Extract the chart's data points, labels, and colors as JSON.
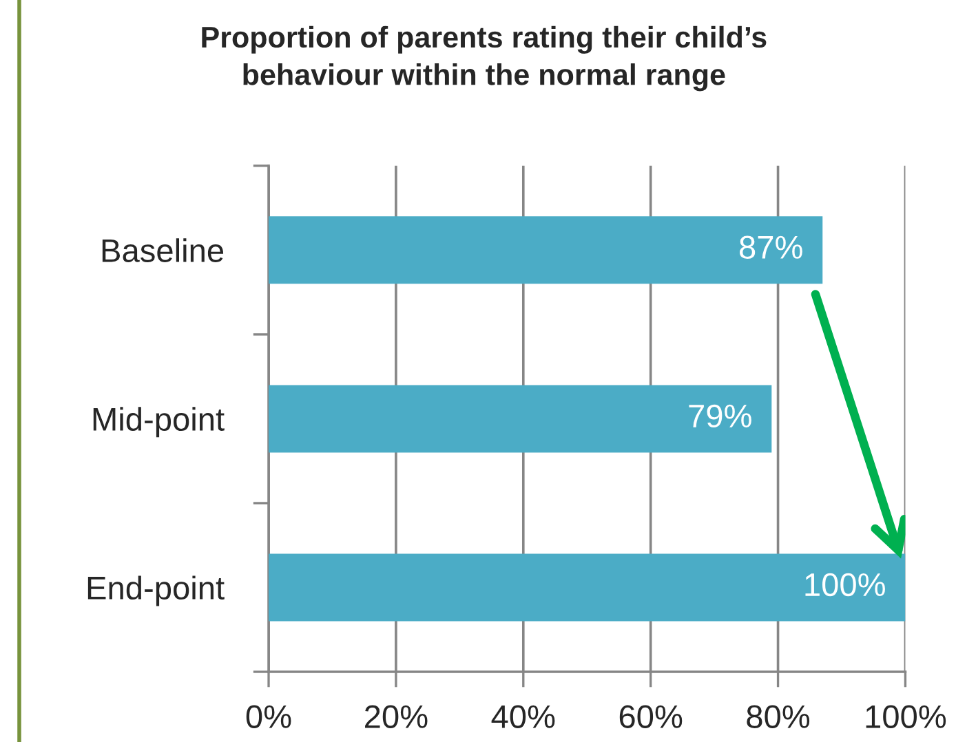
{
  "chart_data": {
    "type": "bar",
    "orientation": "horizontal",
    "title": "Proportion of parents rating their child’s\nbehaviour within the normal range",
    "categories": [
      "Baseline",
      "Mid-point",
      "End-point"
    ],
    "values": [
      87,
      79,
      100
    ],
    "color": "#4bacc6",
    "value_labels": [
      "87%",
      "79%",
      "100%"
    ],
    "xlim": [
      0,
      100
    ],
    "xticks": [
      {
        "value": 0,
        "label": "0%"
      },
      {
        "value": 20,
        "label": "20%"
      },
      {
        "value": 40,
        "label": "40%"
      },
      {
        "value": 60,
        "label": "60%"
      },
      {
        "value": 80,
        "label": "80%"
      },
      {
        "value": 100,
        "label": "100%"
      }
    ],
    "grid": "x"
  }
}
